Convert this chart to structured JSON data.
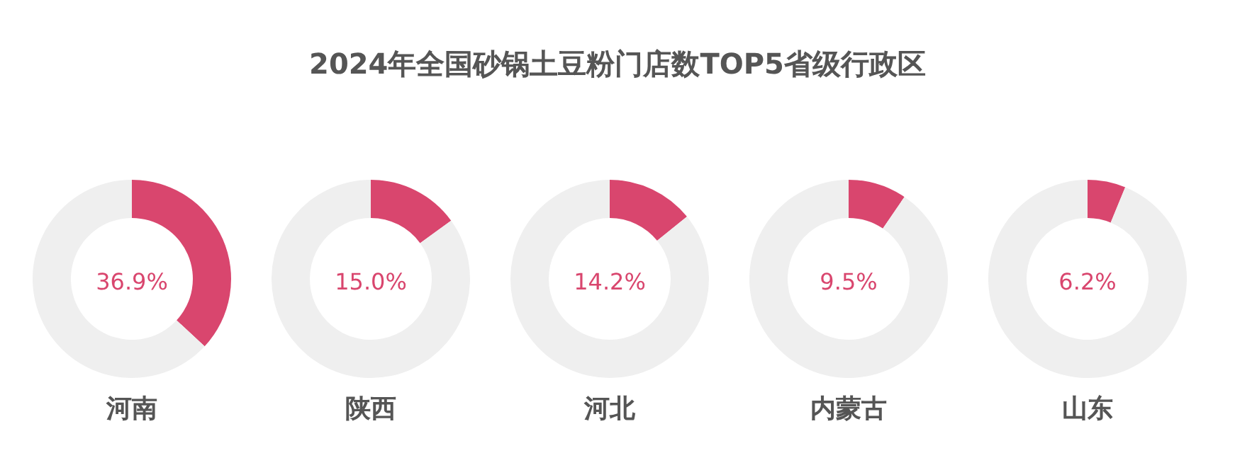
{
  "chart_data": [
    {
      "type": "other",
      "title": "2024年全国砂锅土豆粉门店数TOP5省级行政区"
    },
    {
      "type": "donut",
      "title": "河南",
      "categories": [
        null,
        null
      ],
      "values": [
        36.9,
        63.1
      ],
      "colors": [
        "#d9466e",
        "#efefef"
      ],
      "annotations": [
        "36.9%"
      ]
    },
    {
      "type": "donut",
      "title": "陕西",
      "categories": [
        null,
        null
      ],
      "values": [
        15.0,
        85.0
      ],
      "colors": [
        "#d9466e",
        "#efefef"
      ],
      "annotations": [
        "15.0%"
      ]
    },
    {
      "type": "donut",
      "title": "河北",
      "categories": [
        null,
        null
      ],
      "values": [
        14.2,
        85.8
      ],
      "colors": [
        "#d9466e",
        "#efefef"
      ],
      "annotations": [
        "14.2%"
      ]
    },
    {
      "type": "donut",
      "title": "内蒙古",
      "categories": [
        null,
        null
      ],
      "values": [
        9.5,
        90.5
      ],
      "colors": [
        "#d9466e",
        "#efefef"
      ],
      "annotations": [
        "9.5%"
      ]
    },
    {
      "type": "donut",
      "title": "山东",
      "categories": [
        null,
        null
      ],
      "values": [
        6.2,
        93.8
      ],
      "colors": [
        "#d9466e",
        "#efefef"
      ],
      "annotations": [
        "6.2%"
      ]
    }
  ]
}
